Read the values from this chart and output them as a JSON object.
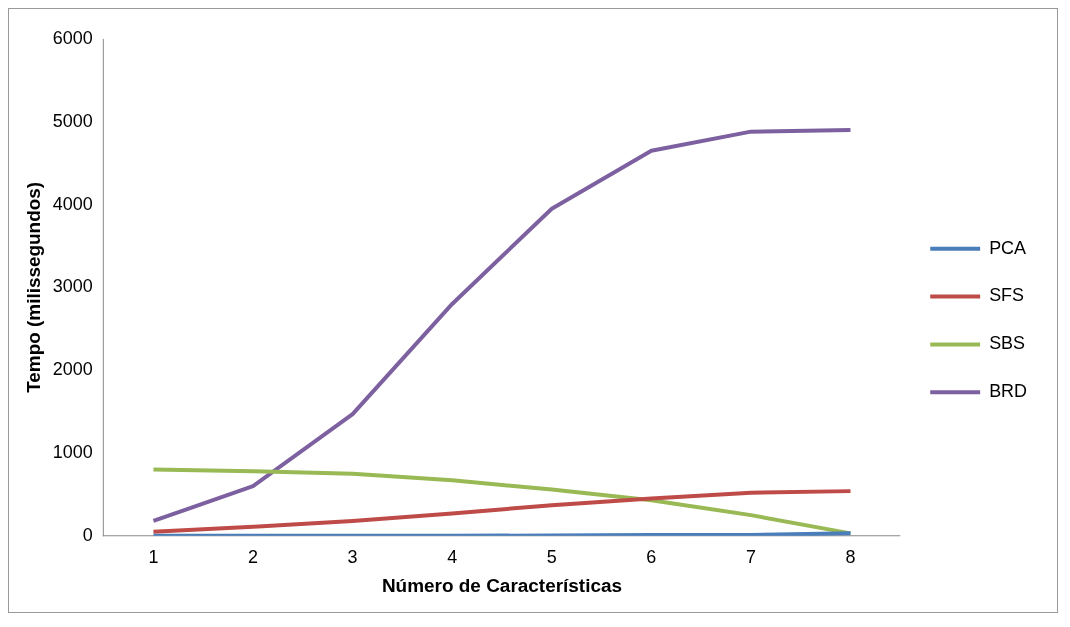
{
  "chart_data": {
    "type": "line",
    "xlabel": "Número de Características",
    "ylabel": "Tempo (milissegundos)",
    "categories": [
      "1",
      "2",
      "3",
      "4",
      "5",
      "6",
      "7",
      "8"
    ],
    "series": [
      {
        "name": "PCA",
        "color": "#4a7ebb",
        "values": [
          0,
          0,
          0,
          0,
          5,
          10,
          10,
          30
        ]
      },
      {
        "name": "SFS",
        "color": "#be4b48",
        "values": [
          50,
          110,
          180,
          270,
          370,
          450,
          520,
          540
        ]
      },
      {
        "name": "SBS",
        "color": "#98b954",
        "values": [
          800,
          780,
          750,
          670,
          560,
          430,
          250,
          30
        ]
      },
      {
        "name": "BRD",
        "color": "#7d60a0",
        "values": [
          180,
          600,
          1470,
          2800,
          3950,
          4650,
          4880,
          4900
        ]
      }
    ],
    "ylim": [
      0,
      6000
    ],
    "yticks": [
      0,
      1000,
      2000,
      3000,
      4000,
      5000,
      6000
    ],
    "grid": false,
    "legend": "right",
    "marker": "none",
    "line_style": "solid"
  }
}
